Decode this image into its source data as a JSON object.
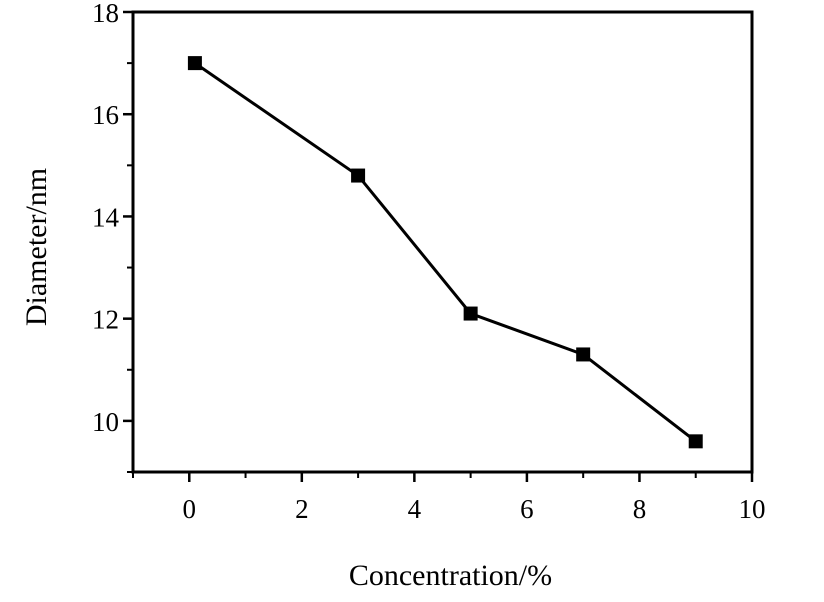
{
  "chart_data": {
    "type": "line",
    "x": [
      0.1,
      3.0,
      5.0,
      7.0,
      9.0
    ],
    "series": [
      {
        "values": [
          17.0,
          14.8,
          12.1,
          11.3,
          9.6
        ]
      }
    ],
    "xlabel": "Concentration/%",
    "ylabel": "Diameter/nm",
    "xlim": [
      -1,
      10
    ],
    "ylim": [
      9,
      18
    ],
    "xticks": [
      "0",
      "2",
      "4",
      "6",
      "8",
      "10"
    ],
    "yticks": [
      "10",
      "12",
      "14",
      "16",
      "18"
    ],
    "grid": false,
    "marker": "square",
    "color": "#000000"
  }
}
